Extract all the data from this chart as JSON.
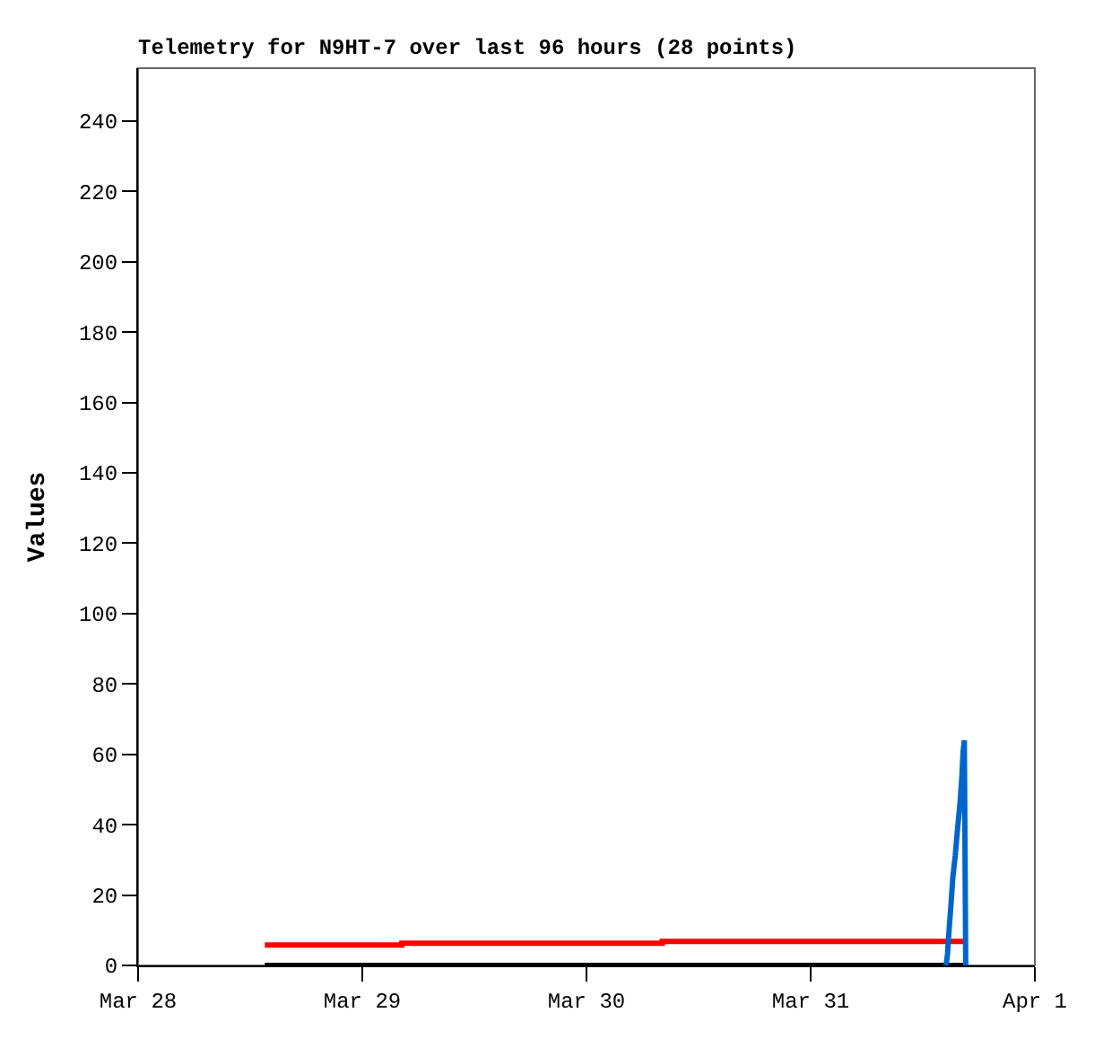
{
  "chart_data": {
    "type": "line",
    "title": "Telemetry for N9HT-7 over last 96 hours (28 points)",
    "ylabel": "Values",
    "xlim": [
      "--03-28",
      "--04-01"
    ],
    "xticks": [
      {
        "value": "--03-28",
        "label": "Mar 28"
      },
      {
        "value": "--03-29",
        "label": "Mar 29"
      },
      {
        "value": "--03-30",
        "label": "Mar 30"
      },
      {
        "value": "--03-31",
        "label": "Mar 31"
      },
      {
        "value": "--04-01",
        "label": "Apr 1"
      }
    ],
    "ylim": [
      0,
      255
    ],
    "yticks": [
      0,
      20,
      40,
      60,
      80,
      100,
      120,
      140,
      160,
      180,
      200,
      220,
      240
    ],
    "marker": "none",
    "line_style": "solid",
    "series": [
      {
        "type": "step",
        "color": "#ff0000",
        "x": [
          "--03-28T13:34",
          "--03-29T04:14",
          "--03-30T08:07",
          "--03-31T16:42"
        ],
        "values": [
          5.8,
          6.3,
          6.8,
          6.8
        ]
      },
      {
        "color": "#000000",
        "x": [
          "--03-28T13:34",
          "--03-31T16:42"
        ],
        "values": [
          0,
          0
        ]
      },
      {
        "color": "#0066cc",
        "x": [
          "--03-31T14:30",
          "--03-31T14:39",
          "--03-31T14:50",
          "--03-31T15:02",
          "--03-31T15:13",
          "--03-31T15:29",
          "--03-31T15:44",
          "--03-31T15:59",
          "--03-31T16:11",
          "--03-31T16:19",
          "--03-31T16:27",
          "--03-31T16:36"
        ],
        "values": [
          0,
          3.3,
          10.6,
          17.7,
          24.9,
          31.3,
          39,
          46,
          53.5,
          60.6,
          64,
          0
        ]
      }
    ]
  }
}
